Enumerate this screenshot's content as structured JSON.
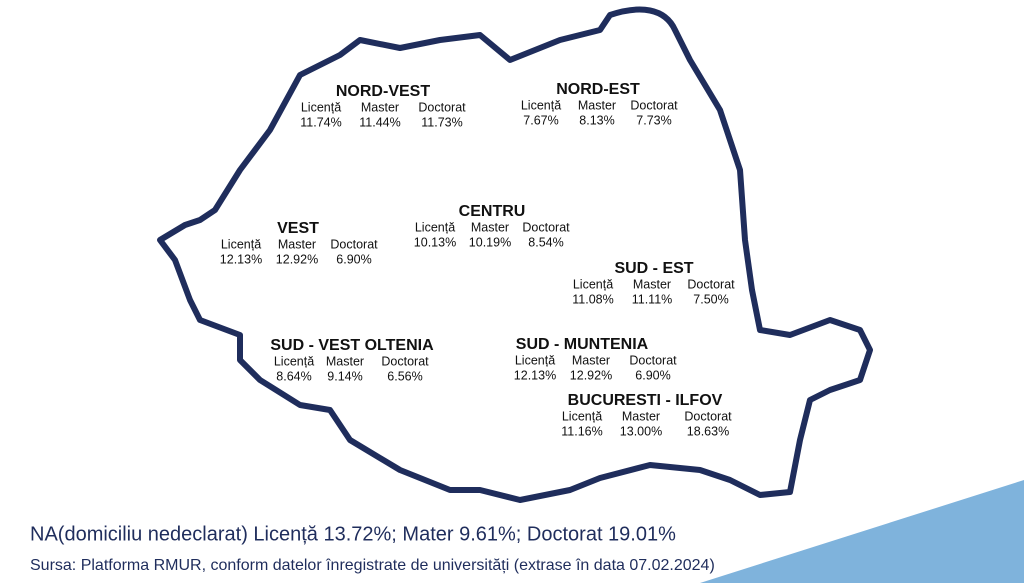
{
  "regions": [
    {
      "name": "NORD-VEST",
      "labels": [
        "Licență",
        "Master",
        "Doctorat"
      ],
      "values": [
        "11.74%",
        "11.44%",
        "11.73%"
      ]
    },
    {
      "name": "NORD-EST",
      "labels": [
        "Licență",
        "Master",
        "Doctorat"
      ],
      "values": [
        "7.67%",
        "8.13%",
        "7.73%"
      ]
    },
    {
      "name": "VEST",
      "labels": [
        "Licență",
        "Master",
        "Doctorat"
      ],
      "values": [
        "12.13%",
        "12.92%",
        "6.90%"
      ]
    },
    {
      "name": "CENTRU",
      "labels": [
        "Licență",
        "Master",
        "Doctorat"
      ],
      "values": [
        "10.13%",
        "10.19%",
        "8.54%"
      ]
    },
    {
      "name": "SUD - EST",
      "labels": [
        "Licență",
        "Master",
        "Doctorat"
      ],
      "values": [
        "11.08%",
        "11.11%",
        "7.50%"
      ]
    },
    {
      "name": "SUD - VEST OLTENIA",
      "labels": [
        "Licență",
        "Master",
        "Doctorat"
      ],
      "values": [
        "8.64%",
        "9.14%",
        "6.56%"
      ]
    },
    {
      "name": "SUD - MUNTENIA",
      "labels": [
        "Licență",
        "Master",
        "Doctorat"
      ],
      "values": [
        "12.13%",
        "12.92%",
        "6.90%"
      ]
    },
    {
      "name": "BUCURESTI - ILFOV",
      "labels": [
        "Licență",
        "Master",
        "Doctorat"
      ],
      "values": [
        "11.16%",
        "13.00%",
        "18.63%"
      ]
    }
  ],
  "footer": {
    "note": "NA(domiciliu nedeclarat) Licență 13.72%; Mater 9.61%; Doctorat 19.01%",
    "source": "Sursa: Platforma RMUR, conform datelor înregistrate de universități (extrase în data 07.02.2024)"
  }
}
